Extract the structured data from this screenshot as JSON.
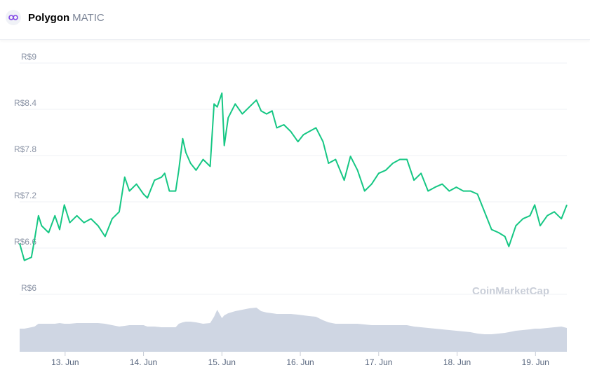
{
  "header": {
    "name": "Polygon",
    "symbol": "MATIC"
  },
  "chart_data": {
    "type": "line",
    "watermark": "CoinMarketCap",
    "color": "#16c784",
    "volume_color": "#cfd6e3",
    "grid": true,
    "xlim": [
      12.42,
      19.4
    ],
    "ylim": [
      6,
      9
    ],
    "y2lim": [
      0,
      100
    ],
    "yticks": [
      {
        "value": 9,
        "label": "R$9"
      },
      {
        "value": 8.4,
        "label": "R$8.4"
      },
      {
        "value": 7.8,
        "label": "R$7.8"
      },
      {
        "value": 7.2,
        "label": "R$7.2"
      },
      {
        "value": 6.6,
        "label": "R$6.6"
      },
      {
        "value": 6,
        "label": "R$6"
      }
    ],
    "xticks": [
      {
        "value": 13,
        "label": "13. Jun"
      },
      {
        "value": 14,
        "label": "14. Jun"
      },
      {
        "value": 15,
        "label": "15. Jun"
      },
      {
        "value": 16,
        "label": "16. Jun"
      },
      {
        "value": 17,
        "label": "17. Jun"
      },
      {
        "value": 18,
        "label": "18. Jun"
      },
      {
        "value": 19,
        "label": "19. Jun"
      }
    ],
    "x": [
      12.42,
      12.48,
      12.57,
      12.61,
      12.66,
      12.7,
      12.79,
      12.87,
      12.93,
      12.99,
      13.06,
      13.15,
      13.24,
      13.33,
      13.42,
      13.51,
      13.6,
      13.69,
      13.76,
      13.82,
      13.91,
      14.0,
      14.05,
      14.14,
      14.23,
      14.27,
      14.33,
      14.41,
      14.45,
      14.5,
      14.54,
      14.6,
      14.67,
      14.76,
      14.85,
      14.9,
      14.94,
      15.0,
      15.03,
      15.08,
      15.17,
      15.26,
      15.35,
      15.44,
      15.5,
      15.57,
      15.64,
      15.7,
      15.79,
      15.88,
      15.97,
      16.04,
      16.11,
      16.2,
      16.29,
      16.36,
      16.45,
      16.56,
      16.64,
      16.73,
      16.82,
      16.91,
      17.0,
      17.09,
      17.18,
      17.27,
      17.36,
      17.45,
      17.54,
      17.63,
      17.72,
      17.81,
      17.9,
      17.99,
      18.08,
      18.17,
      18.26,
      18.35,
      18.44,
      18.53,
      18.61,
      18.66,
      18.75,
      18.84,
      18.93,
      18.99,
      19.06,
      19.15,
      19.24,
      19.33,
      19.4
    ],
    "values": [
      6.66,
      6.44,
      6.48,
      6.71,
      7.02,
      6.89,
      6.8,
      7.02,
      6.84,
      7.16,
      6.93,
      7.02,
      6.93,
      6.98,
      6.89,
      6.75,
      6.98,
      7.07,
      7.52,
      7.34,
      7.43,
      7.3,
      7.25,
      7.48,
      7.52,
      7.57,
      7.34,
      7.34,
      7.61,
      8.02,
      7.84,
      7.7,
      7.61,
      7.75,
      7.66,
      8.47,
      8.43,
      8.61,
      7.93,
      8.29,
      8.47,
      8.34,
      8.43,
      8.52,
      8.38,
      8.34,
      8.38,
      8.16,
      8.2,
      8.11,
      7.98,
      8.07,
      8.11,
      8.16,
      7.98,
      7.7,
      7.75,
      7.48,
      7.79,
      7.61,
      7.34,
      7.43,
      7.57,
      7.61,
      7.7,
      7.75,
      7.75,
      7.48,
      7.57,
      7.34,
      7.39,
      7.43,
      7.34,
      7.39,
      7.34,
      7.34,
      7.3,
      7.07,
      6.84,
      6.8,
      6.75,
      6.62,
      6.89,
      6.98,
      7.02,
      7.16,
      6.89,
      7.02,
      7.07,
      6.98,
      7.16
    ],
    "volume": [
      33,
      33,
      35,
      36,
      40,
      40,
      40,
      40,
      41,
      40,
      40,
      41,
      41,
      41,
      41,
      40,
      38,
      36,
      37,
      38,
      38,
      38,
      36,
      36,
      35,
      35,
      35,
      35,
      40,
      42,
      43,
      43,
      42,
      40,
      41,
      50,
      60,
      48,
      52,
      55,
      58,
      60,
      62,
      63,
      58,
      56,
      55,
      54,
      54,
      54,
      53,
      52,
      51,
      50,
      45,
      42,
      40,
      40,
      40,
      40,
      39,
      38,
      38,
      38,
      38,
      38,
      38,
      36,
      35,
      34,
      33,
      32,
      31,
      30,
      29,
      28,
      26,
      25,
      25,
      26,
      27,
      28,
      30,
      31,
      32,
      33,
      33,
      34,
      35,
      36,
      34
    ]
  }
}
